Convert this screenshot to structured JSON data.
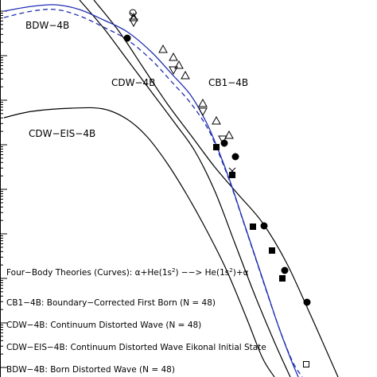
{
  "chart_data": {
    "type": "line",
    "title": "",
    "xlabel": "",
    "ylabel": "",
    "y_scale": "log",
    "grid": false,
    "curve_labels": [
      {
        "text": "BDW−4B"
      },
      {
        "text": "CDW−4B"
      },
      {
        "text": "CB1−4B"
      },
      {
        "text": "CDW−EIS−4B"
      }
    ],
    "legend": {
      "placement": "bottom-left",
      "heading_prefix": "Four−Body Theories (Curves): α+He(1s",
      "heading_mid": ") −−> He(1s",
      "heading_suffix": ")+α",
      "heading_sup": "2",
      "entries": [
        "CB1−4B: Boundary−Corrected First Born (N = 48)",
        "CDW−4B: Continuum Distorted Wave (N = 48)",
        "CDW−EIS−4B: Continuum Distorted Wave Eikonal Initial State",
        "BDW−4B: Born Distorted Wave (N = 48)"
      ]
    },
    "series": [
      {
        "key": "CB1",
        "style": "solid",
        "color": "#000000",
        "points": [
          [
            118,
            0
          ],
          [
            150,
            40
          ],
          [
            180,
            85
          ],
          [
            210,
            130
          ],
          [
            240,
            170
          ],
          [
            270,
            210
          ],
          [
            300,
            245
          ],
          [
            330,
            280
          ],
          [
            360,
            330
          ],
          [
            390,
            395
          ],
          [
            410,
            440
          ],
          [
            425,
            474
          ]
        ]
      },
      {
        "key": "CDW",
        "style": "solid",
        "color": "#000000",
        "points": [
          [
            100,
            0
          ],
          [
            130,
            35
          ],
          [
            160,
            75
          ],
          [
            190,
            115
          ],
          [
            220,
            155
          ],
          [
            245,
            190
          ],
          [
            270,
            240
          ],
          [
            295,
            305
          ],
          [
            320,
            370
          ],
          [
            345,
            430
          ],
          [
            365,
            474
          ]
        ]
      },
      {
        "key": "CDW-EIS",
        "style": "solid",
        "color": "#000000",
        "points": [
          [
            5,
            148
          ],
          [
            40,
            140
          ],
          [
            90,
            136
          ],
          [
            130,
            137
          ],
          [
            160,
            150
          ],
          [
            185,
            172
          ],
          [
            210,
            205
          ],
          [
            235,
            245
          ],
          [
            260,
            290
          ],
          [
            285,
            340
          ],
          [
            310,
            400
          ],
          [
            330,
            450
          ],
          [
            345,
            474
          ]
        ]
      },
      {
        "key": "BDW",
        "style": "solid",
        "color": "#1f2fb0",
        "points": [
          [
            5,
            14
          ],
          [
            40,
            8
          ],
          [
            70,
            6
          ],
          [
            100,
            12
          ],
          [
            130,
            25
          ],
          [
            160,
            40
          ],
          [
            190,
            65
          ],
          [
            215,
            92
          ],
          [
            240,
            120
          ],
          [
            260,
            155
          ],
          [
            275,
            190
          ],
          [
            290,
            230
          ],
          [
            305,
            275
          ],
          [
            320,
            320
          ],
          [
            335,
            365
          ],
          [
            350,
            410
          ],
          [
            365,
            450
          ],
          [
            375,
            474
          ]
        ]
      },
      {
        "key": "BDW-dashed",
        "style": "dashed",
        "color": "#1f2fb0",
        "points": [
          [
            5,
            22
          ],
          [
            40,
            14
          ],
          [
            70,
            12
          ],
          [
            100,
            20
          ],
          [
            130,
            34
          ],
          [
            160,
            50
          ],
          [
            190,
            75
          ],
          [
            215,
            102
          ],
          [
            240,
            130
          ],
          [
            262,
            163
          ],
          [
            278,
            200
          ],
          [
            293,
            240
          ],
          [
            308,
            285
          ],
          [
            323,
            330
          ],
          [
            338,
            375
          ],
          [
            353,
            418
          ],
          [
            368,
            455
          ],
          [
            380,
            474
          ]
        ]
      }
    ],
    "markers": [
      {
        "shape": "circle-open",
        "points": [
          [
            167,
            16
          ]
        ]
      },
      {
        "shape": "circle-filled",
        "points": [
          [
            160,
            48
          ],
          [
            282,
            180
          ],
          [
            296,
            197
          ],
          [
            332,
            284
          ],
          [
            358,
            340
          ],
          [
            386,
            380
          ]
        ]
      },
      {
        "shape": "triangle-open",
        "points": [
          [
            168,
            22
          ],
          [
            205,
            62
          ],
          [
            218,
            72
          ],
          [
            233,
            95
          ],
          [
            255,
            130
          ],
          [
            272,
            152
          ],
          [
            288,
            170
          ],
          [
            225,
            82
          ]
        ]
      },
      {
        "shape": "triangle-down-open",
        "points": [
          [
            168,
            28
          ],
          [
            218,
            88
          ],
          [
            255,
            140
          ],
          [
            280,
            175
          ]
        ]
      },
      {
        "shape": "square-filled",
        "points": [
          [
            272,
            185
          ],
          [
            292,
            220
          ],
          [
            318,
            285
          ],
          [
            342,
            315
          ],
          [
            355,
            350
          ]
        ]
      },
      {
        "shape": "square-open",
        "points": [
          [
            385,
            458
          ]
        ]
      },
      {
        "shape": "x-open",
        "points": [
          [
            168,
            20
          ],
          [
            292,
            215
          ]
        ]
      }
    ]
  }
}
